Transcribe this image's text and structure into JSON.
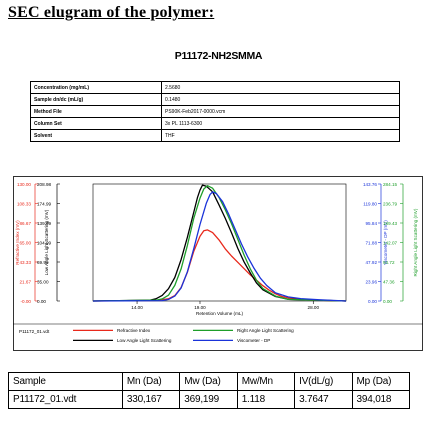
{
  "heading": "SEC elugram of the polymer:",
  "sample_title": "P11172-NH2SMMA",
  "info": [
    {
      "label": "Concentration (mg/mL)",
      "value": "2.5680"
    },
    {
      "label": "Sample dn/dc (mL/g)",
      "value": "0.1480"
    },
    {
      "label": "Method File",
      "value": "PS90K-Feb2017-0000.vcm"
    },
    {
      "label": "Column Set",
      "value": "3x PL 1113-6300"
    },
    {
      "label": "Solvent",
      "value": "THF"
    }
  ],
  "chart_data": {
    "type": "line",
    "xlabel": "Retention Volume (mL)",
    "x_ticks": [
      "14.00",
      "19.00",
      "28.00"
    ],
    "x_tick_values": [
      14,
      19,
      28
    ],
    "xlim": [
      10.5,
      30.6
    ],
    "grid": false,
    "legend_placement": "bottom",
    "axes": [
      {
        "label": "Refractive Index (mV)",
        "color": "#e8291c",
        "side": "left",
        "ticks": [
          "130.00",
          "108.33",
          "86.67",
          "65.00",
          "43.33",
          "21.67",
          "-0.00"
        ]
      },
      {
        "label": "Low Angle Light Scattering (mV)",
        "color": "#000000",
        "side": "left",
        "ticks": [
          "208.98",
          "174.99",
          "139.99",
          "104.99",
          "69.99",
          "35.00",
          "0.00"
        ]
      },
      {
        "label": "Viscometer - DP (mV)",
        "color": "#1a33d9",
        "side": "right",
        "ticks": [
          "143.76",
          "119.80",
          "95.84",
          "71.88",
          "47.92",
          "23.96",
          "0.00"
        ]
      },
      {
        "label": "Right Angle Light Scattering (mV)",
        "color": "#1e9e2a",
        "side": "right",
        "ticks": [
          "284.15",
          "236.79",
          "189.43",
          "142.07",
          "94.72",
          "47.36",
          "0.00"
        ]
      }
    ],
    "series": [
      {
        "name": "Refractive Index",
        "color": "#e8291c",
        "x": [
          10.5,
          15.5,
          16.5,
          17.0,
          17.5,
          18.0,
          18.5,
          19.0,
          19.3,
          19.6,
          20.0,
          20.5,
          21.0,
          21.5,
          22.0,
          22.5,
          23.0,
          23.5,
          24.0,
          24.5,
          25.0,
          25.5,
          26.0,
          27.0,
          28.0,
          30.6
        ],
        "y": [
          0.0,
          0.5,
          2.5,
          6.0,
          15.0,
          32.0,
          55.0,
          72.0,
          78.0,
          79.0,
          76.0,
          68.0,
          58.0,
          50.0,
          43.0,
          36.0,
          29.0,
          23.0,
          17.0,
          12.0,
          8.0,
          5.0,
          3.5,
          2.0,
          1.0,
          0.0
        ]
      },
      {
        "name": "Low Angle Light Scattering",
        "color": "#000000",
        "x": [
          10.5,
          15.0,
          15.5,
          16.0,
          16.5,
          17.0,
          17.5,
          18.0,
          18.5,
          18.8,
          19.0,
          19.2,
          19.5,
          20.0,
          20.5,
          21.0,
          21.5,
          22.0,
          22.5,
          23.0,
          23.5,
          24.0,
          25.0,
          26.0,
          30.6
        ],
        "y": [
          0.0,
          1.5,
          4.0,
          10.0,
          22.0,
          42.0,
          74.0,
          114.0,
          158.0,
          185.0,
          198.0,
          207.0,
          205.0,
          195.0,
          172.0,
          148.0,
          122.0,
          94.0,
          70.0,
          50.0,
          32.0,
          20.0,
          8.0,
          3.0,
          0.0
        ]
      },
      {
        "name": "Right Angle Light Scattering",
        "color": "#1e9e2a",
        "x": [
          10.5,
          15.5,
          16.0,
          16.5,
          17.0,
          17.5,
          18.0,
          18.5,
          19.0,
          19.3,
          19.6,
          20.0,
          20.5,
          21.0,
          21.5,
          22.0,
          22.5,
          23.0,
          23.5,
          24.0,
          25.0,
          26.0,
          30.6
        ],
        "y": [
          0.0,
          2.0,
          5.0,
          14.0,
          38.0,
          78.0,
          135.0,
          200.0,
          250.0,
          272.0,
          280.0,
          274.0,
          252.0,
          222.0,
          188.0,
          150.0,
          112.0,
          78.0,
          50.0,
          30.0,
          12.0,
          4.0,
          0.0
        ]
      },
      {
        "name": "Viscometer - DP",
        "color": "#1a33d9",
        "x": [
          10.5,
          16.0,
          16.5,
          17.0,
          17.5,
          18.0,
          18.5,
          19.0,
          19.5,
          19.8,
          20.0,
          20.3,
          20.8,
          21.3,
          21.8,
          22.3,
          22.8,
          23.3,
          23.8,
          24.3,
          25.0,
          26.0,
          27.0,
          28.5,
          30.6
        ],
        "y": [
          0.0,
          0.5,
          2.0,
          6.0,
          16.0,
          36.0,
          64.0,
          94.0,
          120.0,
          131.0,
          134.0,
          132.0,
          122.0,
          106.0,
          88.0,
          70.0,
          54.0,
          40.0,
          28.0,
          19.0,
          10.0,
          5.0,
          3.0,
          1.5,
          0.0
        ]
      }
    ]
  },
  "legend": {
    "file": "P11172_01.vdt",
    "items": [
      {
        "name": "Refractive Index",
        "color": "#e8291c"
      },
      {
        "name": "Right Angle Light Scattering",
        "color": "#1e9e2a"
      },
      {
        "name": "Low Angle Light Scattering",
        "color": "#000000"
      },
      {
        "name": "Viscometer - DP",
        "color": "#1a33d9"
      }
    ]
  },
  "results": {
    "headers": [
      "Sample",
      "Mn (Da)",
      "Mw (Da)",
      "Mw/Mn",
      "IV(dL/g)",
      "Mp (Da)"
    ],
    "row": [
      "P11172_01.vdt",
      "330,167",
      "369,199",
      "1.118",
      "3.7647",
      "394,018"
    ]
  }
}
